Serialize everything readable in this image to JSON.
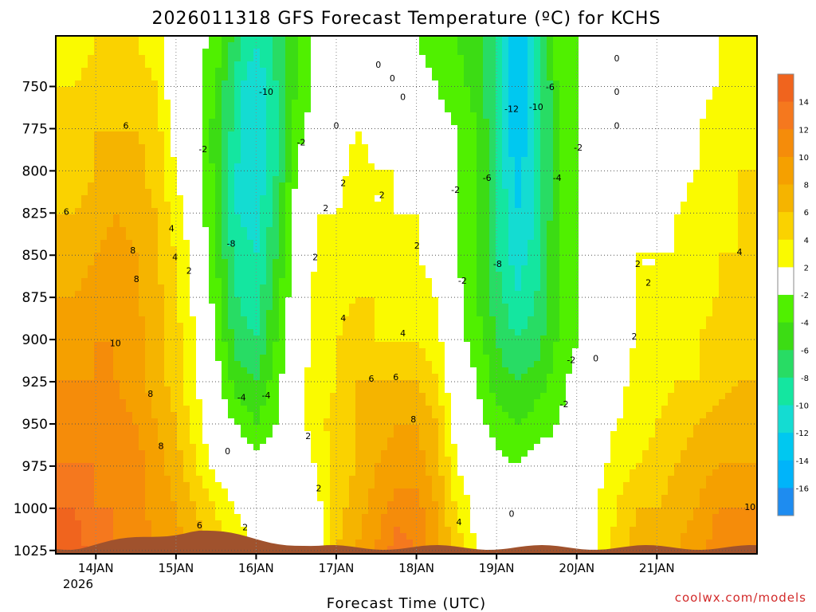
{
  "chart_data": {
    "type": "heatmap",
    "title": "2026011318 GFS Forecast Temperature (ºC) for KCHS",
    "xlabel": "Forecast Time (UTC)",
    "ylabel": "",
    "x_ticks": [
      "14JAN",
      "15JAN",
      "16JAN",
      "17JAN",
      "18JAN",
      "19JAN",
      "20JAN",
      "21JAN"
    ],
    "year_label": "2026",
    "y_ticks": [
      750,
      775,
      800,
      825,
      850,
      875,
      900,
      925,
      950,
      975,
      1000,
      1025
    ],
    "y_units": "hPa",
    "y_range": [
      720,
      1027
    ],
    "x_range_hours": [
      -12,
      198
    ],
    "grid": true,
    "colorbar": {
      "ticks": [
        14,
        12,
        10,
        8,
        6,
        4,
        2,
        -2,
        -4,
        -6,
        -8,
        -10,
        -12,
        -14,
        -16
      ],
      "bins": [
        {
          "min": 14,
          "max": 16,
          "color": "#f0641e"
        },
        {
          "min": 12,
          "max": 14,
          "color": "#f5781e"
        },
        {
          "min": 10,
          "max": 12,
          "color": "#f58c0a"
        },
        {
          "min": 8,
          "max": 10,
          "color": "#f5a000"
        },
        {
          "min": 6,
          "max": 8,
          "color": "#f5b400"
        },
        {
          "min": 4,
          "max": 6,
          "color": "#fad200"
        },
        {
          "min": 2,
          "max": 4,
          "color": "#fafa00"
        },
        {
          "min": -2,
          "max": 2,
          "color": "#ffffff"
        },
        {
          "min": -4,
          "max": -2,
          "color": "#50f000"
        },
        {
          "min": -6,
          "max": -4,
          "color": "#3cdc14"
        },
        {
          "min": -8,
          "max": -6,
          "color": "#28dc64"
        },
        {
          "min": -10,
          "max": -8,
          "color": "#14e6a0"
        },
        {
          "min": -12,
          "max": -10,
          "color": "#14dcd2"
        },
        {
          "min": -14,
          "max": -12,
          "color": "#00c8f0"
        },
        {
          "min": -16,
          "max": -14,
          "color": "#00b4fa"
        },
        {
          "min": -18,
          "max": -16,
          "color": "#1e8cf0"
        }
      ]
    },
    "series": [
      {
        "x": [
          -6,
          0,
          6,
          12,
          18,
          24,
          30,
          36,
          42,
          48,
          54,
          60,
          66,
          72,
          78,
          84,
          90,
          96,
          102,
          108,
          114,
          120,
          126,
          132,
          138,
          144,
          150,
          156,
          162,
          168,
          174,
          180,
          186,
          192
        ],
        "pressure_levels": [
          725,
          750,
          775,
          800,
          825,
          850,
          875,
          900,
          925,
          950,
          975,
          1000,
          1025
        ],
        "temperature_c": [
          [
            3,
            4,
            4,
            4,
            3,
            0,
            -1,
            -3,
            -7,
            -10,
            -7,
            -4,
            -1,
            0,
            1,
            0,
            -1,
            -2,
            -3,
            -4,
            -5,
            -8,
            -14,
            -10,
            -3,
            -2,
            -1,
            0,
            0,
            -1,
            0,
            1,
            2,
            3
          ],
          [
            4,
            5,
            5,
            5,
            4,
            0,
            -1,
            -4,
            -9,
            -12,
            -8,
            -4,
            -1,
            0,
            1,
            0,
            0,
            -1,
            -2,
            -3,
            -5,
            -8,
            -14,
            -10,
            -4,
            -2,
            -1,
            0,
            0,
            0,
            1,
            1,
            2,
            3
          ],
          [
            5,
            6,
            6,
            6,
            5,
            1,
            -1,
            -5,
            -9,
            -12,
            -8,
            -3,
            -1,
            0,
            2,
            1,
            1,
            0,
            -1,
            -2,
            -4,
            -8,
            -14,
            -10,
            -4,
            -2,
            -1,
            0,
            0,
            0,
            1,
            2,
            3,
            3
          ],
          [
            5,
            6,
            7,
            7,
            5,
            2,
            0,
            -5,
            -10,
            -12,
            -8,
            -2,
            1,
            1,
            3,
            2,
            2,
            1,
            -1,
            -2,
            -4,
            -8,
            -13,
            -10,
            -4,
            -2,
            -1,
            0,
            1,
            1,
            1,
            2,
            3,
            4
          ],
          [
            6,
            7,
            8,
            7,
            6,
            3,
            0,
            -5,
            -10,
            -11,
            -7,
            -1,
            2,
            2,
            3,
            2,
            2,
            2,
            0,
            -2,
            -4,
            -8,
            -12,
            -10,
            -4,
            -2,
            -1,
            0,
            1,
            1,
            2,
            3,
            3,
            4
          ],
          [
            7,
            8,
            9,
            8,
            6,
            4,
            1,
            -4,
            -9,
            -10,
            -6,
            -1,
            2,
            3,
            4,
            3,
            3,
            2,
            1,
            -2,
            -4,
            -8,
            -11,
            -9,
            -4,
            -2,
            -1,
            1,
            2,
            2,
            2,
            3,
            4,
            4
          ],
          [
            8,
            9,
            9,
            8,
            7,
            4,
            1,
            -3,
            -8,
            -9,
            -5,
            0,
            3,
            3,
            4,
            4,
            3,
            3,
            2,
            -1,
            -4,
            -7,
            -10,
            -8,
            -4,
            -2,
            0,
            1,
            2,
            2,
            3,
            3,
            4,
            5
          ],
          [
            9,
            10,
            10,
            9,
            7,
            5,
            2,
            -2,
            -7,
            -8,
            -4,
            0,
            3,
            4,
            5,
            4,
            4,
            4,
            3,
            -1,
            -3,
            -6,
            -8,
            -7,
            -4,
            -2,
            0,
            1,
            2,
            3,
            3,
            4,
            5,
            5
          ],
          [
            10,
            10,
            10,
            9,
            7,
            5,
            2,
            -1,
            -5,
            -6,
            -3,
            1,
            3,
            4,
            6,
            6,
            6,
            6,
            4,
            0,
            -2,
            -5,
            -6,
            -5,
            -3,
            -1,
            0,
            1,
            3,
            3,
            4,
            4,
            5,
            6
          ],
          [
            11,
            11,
            11,
            10,
            8,
            6,
            3,
            0,
            -2,
            -4,
            -2,
            1,
            3,
            5,
            6,
            7,
            8,
            8,
            6,
            1,
            -1,
            -3,
            -4,
            -3,
            -2,
            -1,
            1,
            2,
            3,
            4,
            5,
            6,
            7,
            7
          ],
          [
            12,
            12,
            11,
            11,
            9,
            7,
            4,
            1,
            0,
            -1,
            0,
            1,
            2,
            5,
            6,
            8,
            9,
            9,
            7,
            2,
            0,
            -1,
            -2,
            -1,
            -1,
            0,
            1,
            3,
            4,
            5,
            6,
            7,
            8,
            8
          ],
          [
            14,
            12,
            12,
            11,
            9,
            8,
            6,
            4,
            2,
            1,
            1,
            0,
            1,
            5,
            7,
            9,
            11,
            11,
            8,
            4,
            1,
            0,
            0,
            0,
            0,
            1,
            2,
            4,
            6,
            6,
            7,
            8,
            10,
            10
          ],
          [
            15,
            13,
            12,
            12,
            10,
            9,
            7,
            5,
            3,
            2,
            2,
            1,
            1,
            6,
            8,
            10,
            13,
            12,
            8,
            5,
            2,
            1,
            0,
            0,
            0,
            1,
            2,
            5,
            7,
            7,
            8,
            9,
            11,
            11
          ]
        ]
      }
    ],
    "contour_labels": [
      "2",
      "6",
      "8",
      "10",
      "0",
      "2",
      "4",
      "6",
      "8",
      "4",
      "2",
      "0",
      "-2",
      "-12",
      "-10",
      "-8",
      "-6",
      "-4",
      "0",
      "-2",
      "0",
      "0",
      "2",
      "4",
      "8",
      "8",
      "2",
      "2",
      "6",
      "-2",
      "-10",
      "-8",
      "-6",
      "-4",
      "-4",
      "-2",
      "-2",
      "-2",
      "0",
      "0",
      "0",
      "2",
      "2",
      "2",
      "2",
      "4",
      "4",
      "6",
      "8",
      "10",
      "6",
      "0",
      "0",
      "-2",
      "2",
      "4",
      "2"
    ]
  },
  "credit": "coolwx.com/models"
}
